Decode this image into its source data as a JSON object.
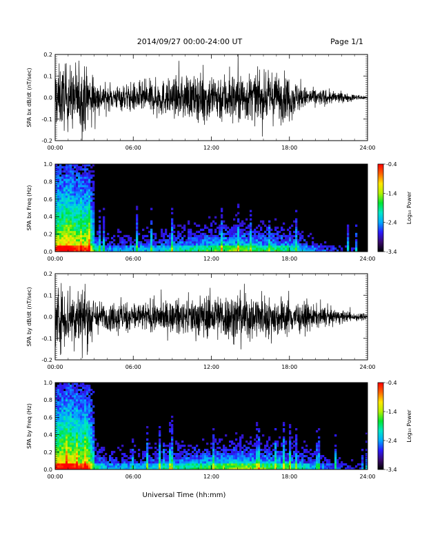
{
  "header": {
    "title": "2014/09/27  00:00-24:00 UT",
    "page": "Page 1/1"
  },
  "colors": {
    "trace": "#000000",
    "spectrogram_background": "#000000",
    "frame": "#000000"
  },
  "colorbar": {
    "label": "Log₁₀ Power",
    "ticks": [
      "-0.4",
      "-1.4",
      "-2.4",
      "-3.4"
    ],
    "range": [
      -3.4,
      -0.4
    ],
    "colormap": [
      "#000000",
      "#3a0a6e",
      "#2a1aff",
      "#00aaff",
      "#00e6c8",
      "#00e632",
      "#b4f000",
      "#ffe600",
      "#ff6400",
      "#ff0000"
    ]
  },
  "chart_data": [
    {
      "type": "line",
      "ylabel": "SPA bx dB/dt (nT/sec)",
      "ylim": [
        -0.2,
        0.2
      ],
      "yticks": [
        "-0.2",
        "-0.1",
        "0.0",
        "0.1",
        "0.2"
      ],
      "xlim": [
        "00:00",
        "24:00"
      ],
      "xticks": [
        "00:00",
        "06:00",
        "12:00",
        "18:00",
        "24:00"
      ],
      "envelope": {
        "time_hours": [
          0,
          0.5,
          1,
          1.5,
          2,
          2.5,
          3,
          3.5,
          4,
          6,
          8,
          10,
          12,
          13,
          14,
          16,
          17,
          18,
          19,
          20,
          22,
          23,
          24
        ],
        "amplitude": [
          0.25,
          0.25,
          0.25,
          0.25,
          0.25,
          0.25,
          0.15,
          0.12,
          0.09,
          0.12,
          0.14,
          0.16,
          0.2,
          0.2,
          0.21,
          0.17,
          0.2,
          0.18,
          0.09,
          0.07,
          0.04,
          0.025,
          0.015
        ]
      }
    },
    {
      "type": "heatmap",
      "ylabel": "SPA bx Freq (Hz)",
      "ylim": [
        0.0,
        1.0
      ],
      "yticks": [
        "0.0",
        "0.2",
        "0.4",
        "0.6",
        "0.8",
        "1.0"
      ],
      "xlim": [
        "00:00",
        "24:00"
      ],
      "xticks": [
        "00:00",
        "06:00",
        "12:00",
        "18:00",
        "24:00"
      ],
      "activity": {
        "time_hours": [
          0,
          0.5,
          1,
          1.5,
          2,
          2.5,
          3,
          3.5,
          4,
          6,
          8,
          10,
          12,
          14,
          16,
          18,
          20,
          22,
          24
        ],
        "intensity": [
          0.85,
          0.9,
          0.95,
          0.85,
          0.8,
          0.85,
          0.45,
          0.35,
          0.3,
          0.3,
          0.35,
          0.42,
          0.5,
          0.55,
          0.48,
          0.45,
          0.25,
          0.15,
          0.08
        ]
      }
    },
    {
      "type": "line",
      "ylabel": "SPA by dB/dt (nT/sec)",
      "ylim": [
        -0.2,
        0.2
      ],
      "yticks": [
        "-0.2",
        "-0.1",
        "0.0",
        "0.1",
        "0.2"
      ],
      "xlim": [
        "00:00",
        "24:00"
      ],
      "xticks": [
        "00:00",
        "06:00",
        "12:00",
        "18:00",
        "24:00"
      ],
      "envelope": {
        "time_hours": [
          0,
          0.5,
          1,
          1.5,
          2,
          2.5,
          3,
          3.5,
          4,
          5,
          6,
          8,
          10,
          12,
          14,
          16,
          18,
          20,
          22,
          23,
          24
        ],
        "amplitude": [
          0.25,
          0.25,
          0.25,
          0.22,
          0.25,
          0.25,
          0.15,
          0.12,
          0.1,
          0.13,
          0.12,
          0.12,
          0.14,
          0.18,
          0.19,
          0.17,
          0.14,
          0.09,
          0.05,
          0.035,
          0.025
        ]
      }
    },
    {
      "type": "heatmap",
      "ylabel": "SPA by Freq (Hz)",
      "ylim": [
        0.0,
        1.0
      ],
      "yticks": [
        "0.0",
        "0.2",
        "0.4",
        "0.6",
        "0.8",
        "1.0"
      ],
      "xlim": [
        "00:00",
        "24:00"
      ],
      "xticks": [
        "00:00",
        "06:00",
        "12:00",
        "18:00",
        "24:00"
      ],
      "activity": {
        "time_hours": [
          0,
          0.5,
          1,
          1.5,
          2,
          2.5,
          3,
          3.5,
          4,
          6,
          8,
          10,
          12,
          14,
          16,
          18,
          20,
          22,
          24
        ],
        "intensity": [
          0.85,
          0.9,
          0.95,
          0.85,
          0.8,
          0.85,
          0.45,
          0.38,
          0.32,
          0.32,
          0.38,
          0.45,
          0.52,
          0.58,
          0.52,
          0.48,
          0.3,
          0.18,
          0.1
        ]
      }
    }
  ],
  "xaxis_label": "Universal Time (hh:mm)"
}
